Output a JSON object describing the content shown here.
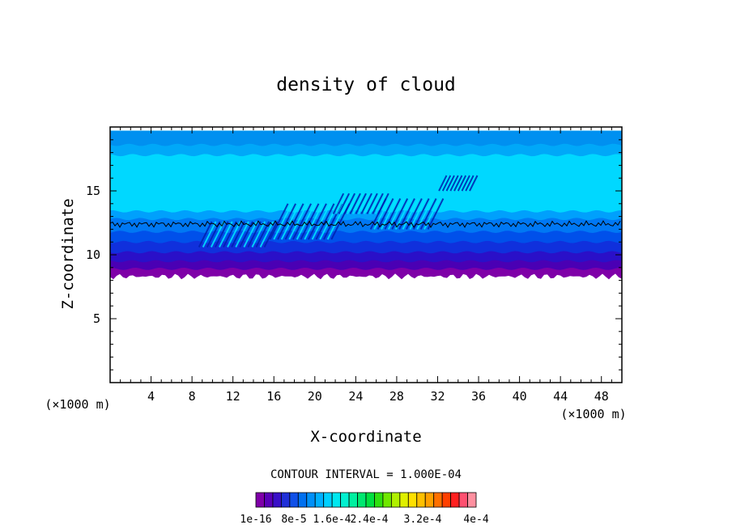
{
  "chart_data": {
    "type": "heatmap",
    "title": "density of cloud",
    "xlabel": "X-coordinate",
    "ylabel": "Z-coordinate",
    "x_unit": "(×1000 m)",
    "z_unit": "(×1000 m)",
    "xlim": [
      0,
      50
    ],
    "ylim": [
      0,
      20
    ],
    "x_ticks": [
      4,
      8,
      12,
      16,
      20,
      24,
      28,
      32,
      36,
      40,
      44,
      48
    ],
    "y_ticks": [
      5,
      10,
      15
    ],
    "contour_interval_text": "CONTOUR INTERVAL = 1.000E-04",
    "colorbar": {
      "tick_labels": [
        "1e-16",
        "8e-5",
        "1.6e-4",
        "2.4e-4",
        "3.2e-4",
        "4e-4"
      ],
      "colors": [
        "#7f00a8",
        "#5a00b8",
        "#3a10c8",
        "#2030d8",
        "#1050e8",
        "#0070f0",
        "#0090f8",
        "#00b0ff",
        "#00d0ff",
        "#00e8f0",
        "#00f0d0",
        "#00f0a0",
        "#00e870",
        "#00e040",
        "#30e010",
        "#70e800",
        "#b0f000",
        "#e0f000",
        "#ffe000",
        "#ffc000",
        "#ffa000",
        "#ff7000",
        "#ff4000",
        "#ff2020",
        "#ff5070",
        "#ff90a0"
      ]
    },
    "cloud": {
      "base_z": 8.3,
      "top_z": 19.7,
      "contour_z": 12.4,
      "layers": [
        {
          "z": 8.3,
          "color": "#7f00a8"
        },
        {
          "z": 8.9,
          "color": "#4a00b4"
        },
        {
          "z": 9.5,
          "color": "#2a10c8"
        },
        {
          "z": 10.2,
          "color": "#1030dc"
        },
        {
          "z": 11.0,
          "color": "#0050ea"
        },
        {
          "z": 11.8,
          "color": "#0078f4"
        },
        {
          "z": 12.8,
          "color": "#00a0fc"
        },
        {
          "z": 13.4,
          "color": "#00d8ff"
        },
        {
          "z": 17.8,
          "color": "#00a8f8"
        },
        {
          "z": 18.6,
          "color": "#0090f0"
        }
      ]
    }
  }
}
